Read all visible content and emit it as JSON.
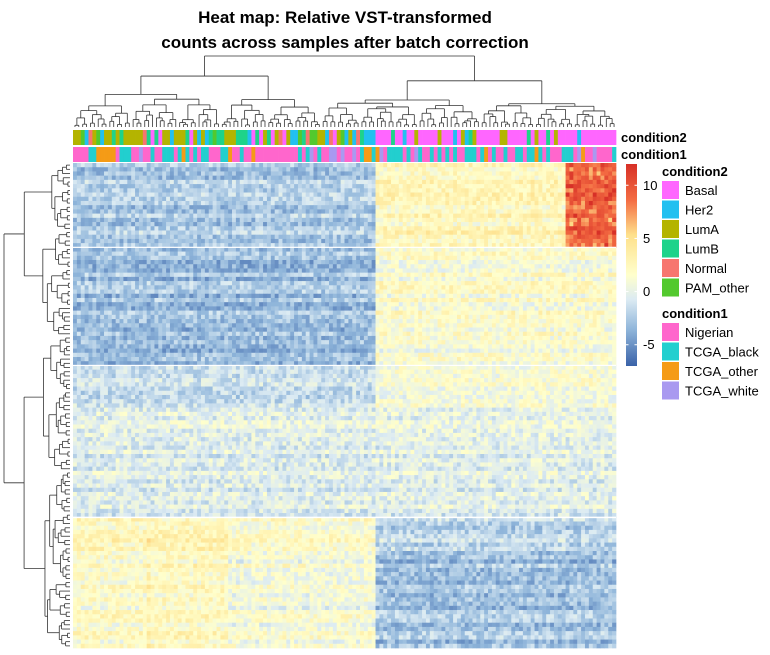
{
  "chart_data": {
    "type": "heatmap",
    "title_lines": [
      "Heat map: Relative VST-transformed",
      "counts across samples after batch correction"
    ],
    "n_columns": 140,
    "n_rows": 115,
    "annotation_tracks": [
      "condition2",
      "condition1"
    ],
    "colorbar": {
      "ticks": [
        10,
        5,
        0,
        -5
      ],
      "range": [
        -7,
        12
      ],
      "low_color": "#3a62a8",
      "mid_color": "#ffffcc",
      "high_color": "#d73027"
    },
    "legends": [
      {
        "title": "condition2",
        "items": [
          {
            "label": "Basal",
            "color": "#ff66ff"
          },
          {
            "label": "Her2",
            "color": "#22c0f0"
          },
          {
            "label": "LumA",
            "color": "#b4b400"
          },
          {
            "label": "LumB",
            "color": "#1ed38a"
          },
          {
            "label": "Normal",
            "color": "#f7766f"
          },
          {
            "label": "PAM_other",
            "color": "#53c92e"
          }
        ]
      },
      {
        "title": "condition1",
        "items": [
          {
            "label": "Nigerian",
            "color": "#ff66cc"
          },
          {
            "label": "TCGA_black",
            "color": "#22cfcf"
          },
          {
            "label": "TCGA_other",
            "color": "#f59b16"
          },
          {
            "label": "TCGA_white",
            "color": "#a999f0"
          }
        ]
      }
    ]
  }
}
